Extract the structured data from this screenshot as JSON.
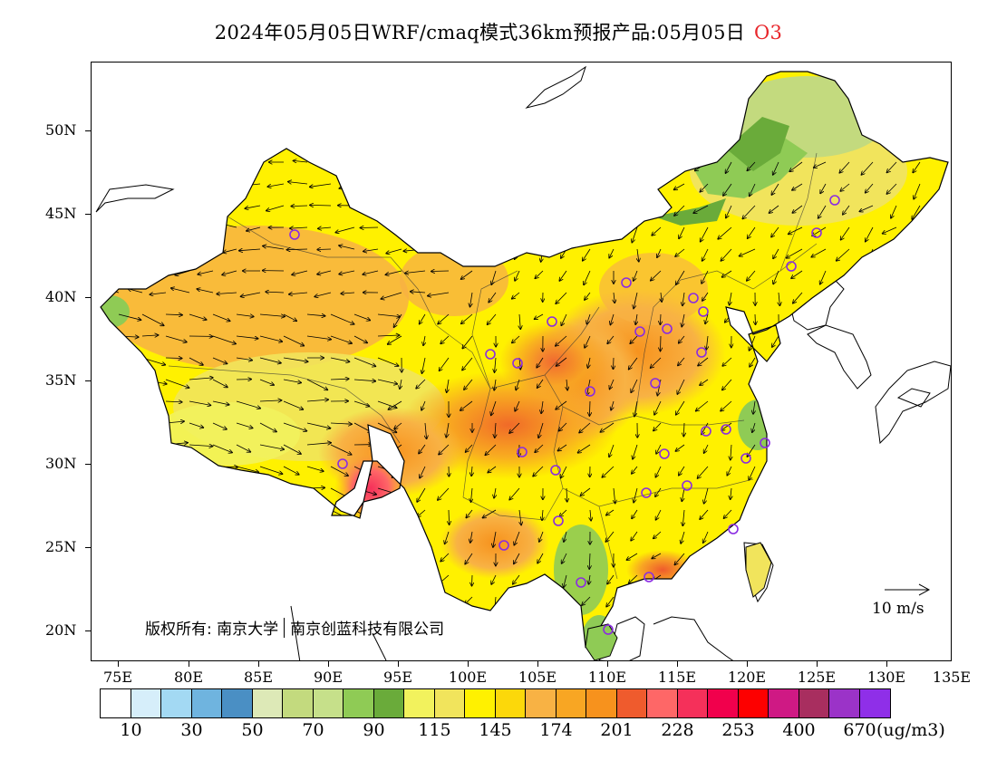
{
  "header": {
    "title": "2024年05月05日WRF/cmaq模式36km预报产品:05月05日",
    "species": "O3",
    "species_color": "#e8262b"
  },
  "axes": {
    "y_labels": [
      "50N",
      "45N",
      "40N",
      "35N",
      "30N",
      "25N",
      "20N"
    ],
    "x_labels": [
      "75E",
      "80E",
      "85E",
      "90E",
      "95E",
      "100E",
      "105E",
      "110E",
      "115E",
      "120E",
      "125E",
      "130E",
      "135E"
    ]
  },
  "map": {
    "copyright_label": "版权所有:",
    "copyright_org1": "南京大学",
    "copyright_org2": "南京创蓝科技有限公司",
    "wind_scale_label": "10 m/s",
    "stations_color": "#8a2be2"
  },
  "colorbar": {
    "labels": [
      "10",
      "30",
      "50",
      "70",
      "90",
      "115",
      "145",
      "174",
      "201",
      "228",
      "253",
      "400",
      "670"
    ],
    "unit": "(ug/m3)",
    "colors": [
      "#ffffff",
      "#d6eefa",
      "#a3d9f3",
      "#6fb4df",
      "#4a8fc4",
      "#dde9b7",
      "#c3da7e",
      "#c6e08a",
      "#8fcb55",
      "#6aab3a",
      "#f2f25d",
      "#f1e45c",
      "#fff100",
      "#fcd80a",
      "#f8b244",
      "#f8a623",
      "#f7921d",
      "#ef5b2d",
      "#fe6767",
      "#f5305a",
      "#f1004c",
      "#fd0000",
      "#cf1984",
      "#a82e5f",
      "#9b33c8",
      "#8f2fe8"
    ]
  }
}
